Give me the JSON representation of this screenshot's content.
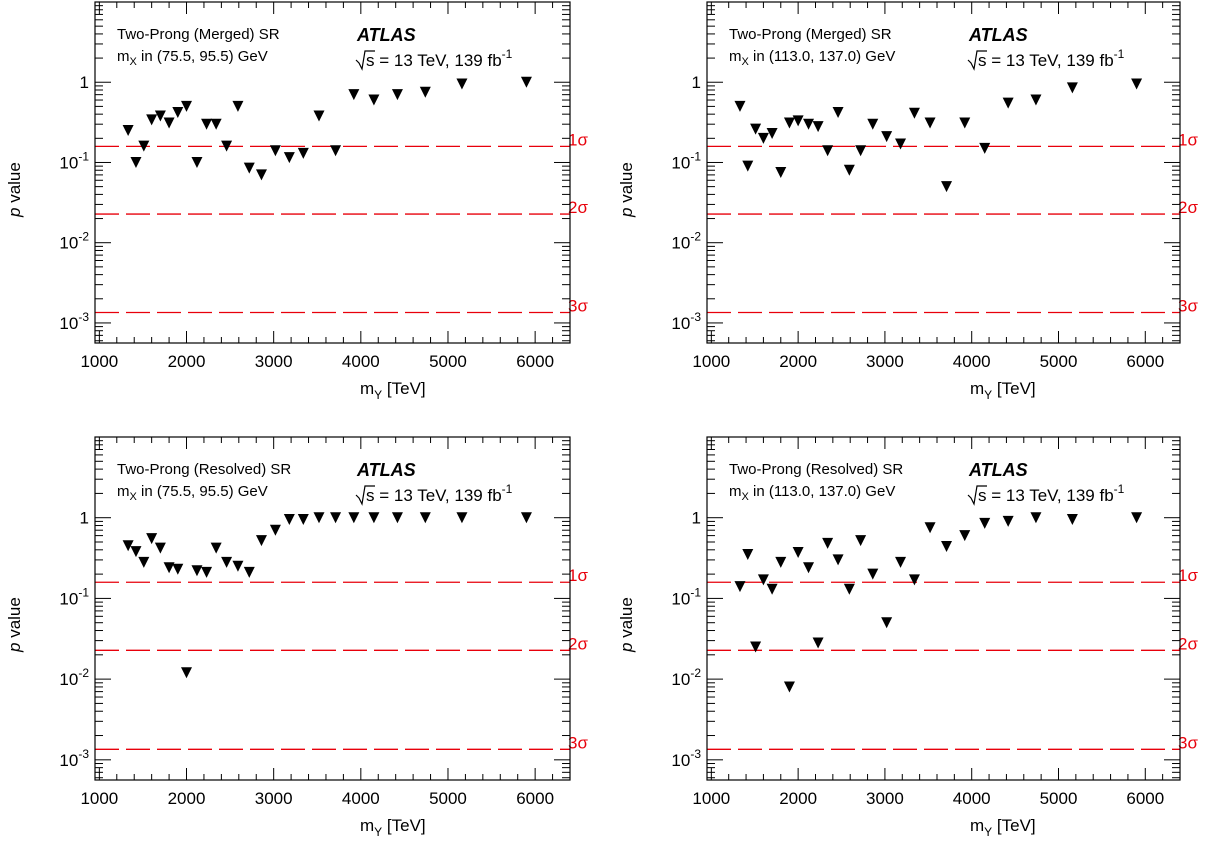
{
  "colors": {
    "axis": "#000000",
    "marker": "#000000",
    "significance": "#e8000b"
  },
  "chart_data": [
    {
      "type": "scatter",
      "title_line1": "Two-Prong (Merged) SR",
      "title_line2_prefix": "m",
      "title_line2_sub": "X",
      "title_line2_rest": " in (75.5, 95.5) GeV",
      "experiment": "ATLAS",
      "energy_prefix": "s = 13 TeV, 139 fb",
      "energy_sup": "-1",
      "xlabel_main": "m",
      "xlabel_sub": "Y",
      "xlabel_rest": " [TeV]",
      "ylabel_italic": "p",
      "ylabel_rest": " value",
      "xlim": [
        950,
        6400
      ],
      "ylim_log10": [
        -3.25,
        1.0
      ],
      "y_scale": "log",
      "xticks": [
        "1000",
        "2000",
        "3000",
        "4000",
        "5000",
        "6000"
      ],
      "yticks": [
        "10^-3",
        "10^-2",
        "10^-1",
        "1"
      ],
      "significance_lines": [
        {
          "label": "1σ",
          "p": 0.1587
        },
        {
          "label": "2σ",
          "p": 0.02275
        },
        {
          "label": "3σ",
          "p": 0.00135
        }
      ],
      "marker": "inverted-triangle",
      "points": {
        "x": [
          1330,
          1420,
          1510,
          1600,
          1700,
          1800,
          1900,
          2000,
          2120,
          2230,
          2340,
          2460,
          2590,
          2720,
          2860,
          3020,
          3180,
          3340,
          3520,
          3710,
          3920,
          4150,
          4420,
          4740,
          5160,
          5900
        ],
        "y": [
          0.25,
          0.1,
          0.16,
          0.34,
          0.38,
          0.31,
          0.42,
          0.5,
          0.1,
          0.3,
          0.3,
          0.16,
          0.5,
          0.085,
          0.07,
          0.14,
          0.115,
          0.13,
          0.38,
          0.14,
          0.7,
          0.6,
          0.7,
          0.75,
          0.95,
          1.0
        ]
      }
    },
    {
      "type": "scatter",
      "title_line1": "Two-Prong (Merged) SR",
      "title_line2_prefix": "m",
      "title_line2_sub": "X",
      "title_line2_rest": " in (113.0, 137.0) GeV",
      "experiment": "ATLAS",
      "energy_prefix": "s = 13 TeV, 139 fb",
      "energy_sup": "-1",
      "xlabel_main": "m",
      "xlabel_sub": "Y",
      "xlabel_rest": " [TeV]",
      "ylabel_italic": "p",
      "ylabel_rest": " value",
      "xlim": [
        950,
        6400
      ],
      "ylim_log10": [
        -3.25,
        1.0
      ],
      "y_scale": "log",
      "xticks": [
        "1000",
        "2000",
        "3000",
        "4000",
        "5000",
        "6000"
      ],
      "yticks": [
        "10^-3",
        "10^-2",
        "10^-1",
        "1"
      ],
      "significance_lines": [
        {
          "label": "1σ",
          "p": 0.1587
        },
        {
          "label": "2σ",
          "p": 0.02275
        },
        {
          "label": "3σ",
          "p": 0.00135
        }
      ],
      "marker": "inverted-triangle",
      "points": {
        "x": [
          1330,
          1420,
          1510,
          1600,
          1700,
          1800,
          1900,
          2000,
          2120,
          2230,
          2340,
          2460,
          2590,
          2720,
          2860,
          3020,
          3180,
          3340,
          3520,
          3710,
          3920,
          4150,
          4420,
          4740,
          5160,
          5900
        ],
        "y": [
          0.5,
          0.09,
          0.26,
          0.2,
          0.23,
          0.075,
          0.31,
          0.33,
          0.3,
          0.28,
          0.14,
          0.42,
          0.08,
          0.14,
          0.3,
          0.21,
          0.17,
          0.41,
          0.31,
          0.05,
          0.31,
          0.15,
          0.55,
          0.6,
          0.85,
          0.95
        ]
      }
    },
    {
      "type": "scatter",
      "title_line1": "Two-Prong (Resolved) SR",
      "title_line2_prefix": "m",
      "title_line2_sub": "X",
      "title_line2_rest": " in (75.5, 95.5) GeV",
      "experiment": "ATLAS",
      "energy_prefix": "s = 13 TeV, 139 fb",
      "energy_sup": "-1",
      "xlabel_main": "m",
      "xlabel_sub": "Y",
      "xlabel_rest": " [TeV]",
      "ylabel_italic": "p",
      "ylabel_rest": " value",
      "xlim": [
        950,
        6400
      ],
      "ylim_log10": [
        -3.25,
        1.0
      ],
      "y_scale": "log",
      "xticks": [
        "1000",
        "2000",
        "3000",
        "4000",
        "5000",
        "6000"
      ],
      "yticks": [
        "10^-3",
        "10^-2",
        "10^-1",
        "1"
      ],
      "significance_lines": [
        {
          "label": "1σ",
          "p": 0.1587
        },
        {
          "label": "2σ",
          "p": 0.02275
        },
        {
          "label": "3σ",
          "p": 0.00135
        }
      ],
      "marker": "inverted-triangle",
      "points": {
        "x": [
          1330,
          1420,
          1510,
          1600,
          1700,
          1800,
          1900,
          2000,
          2120,
          2230,
          2340,
          2460,
          2590,
          2720,
          2860,
          3020,
          3180,
          3340,
          3520,
          3710,
          3920,
          4150,
          4420,
          4740,
          5160,
          5900
        ],
        "y": [
          0.45,
          0.38,
          0.28,
          0.55,
          0.42,
          0.24,
          0.23,
          0.012,
          0.22,
          0.21,
          0.42,
          0.28,
          0.25,
          0.21,
          0.52,
          0.7,
          0.95,
          0.95,
          1.0,
          1.0,
          1.0,
          1.0,
          1.0,
          1.0,
          1.0,
          1.0
        ]
      }
    },
    {
      "type": "scatter",
      "title_line1": "Two-Prong (Resolved) SR",
      "title_line2_prefix": "m",
      "title_line2_sub": "X",
      "title_line2_rest": " in (113.0, 137.0) GeV",
      "experiment": "ATLAS",
      "energy_prefix": "s = 13 TeV, 139 fb",
      "energy_sup": "-1",
      "xlabel_main": "m",
      "xlabel_sub": "Y",
      "xlabel_rest": " [TeV]",
      "ylabel_italic": "p",
      "ylabel_rest": " value",
      "xlim": [
        950,
        6400
      ],
      "ylim_log10": [
        -3.25,
        1.0
      ],
      "y_scale": "log",
      "xticks": [
        "1000",
        "2000",
        "3000",
        "4000",
        "5000",
        "6000"
      ],
      "yticks": [
        "10^-3",
        "10^-2",
        "10^-1",
        "1"
      ],
      "significance_lines": [
        {
          "label": "1σ",
          "p": 0.1587
        },
        {
          "label": "2σ",
          "p": 0.02275
        },
        {
          "label": "3σ",
          "p": 0.00135
        }
      ],
      "marker": "inverted-triangle",
      "points": {
        "x": [
          1330,
          1420,
          1510,
          1600,
          1700,
          1800,
          1900,
          2000,
          2120,
          2230,
          2340,
          2460,
          2590,
          2720,
          2860,
          3020,
          3180,
          3340,
          3520,
          3710,
          3920,
          4150,
          4420,
          4740,
          5160,
          5900
        ],
        "y": [
          0.14,
          0.35,
          0.025,
          0.17,
          0.13,
          0.28,
          0.008,
          0.37,
          0.24,
          0.028,
          0.48,
          0.3,
          0.13,
          0.52,
          0.2,
          0.05,
          0.28,
          0.17,
          0.75,
          0.44,
          0.6,
          0.85,
          0.9,
          1.0,
          0.95,
          1.0
        ]
      }
    }
  ]
}
